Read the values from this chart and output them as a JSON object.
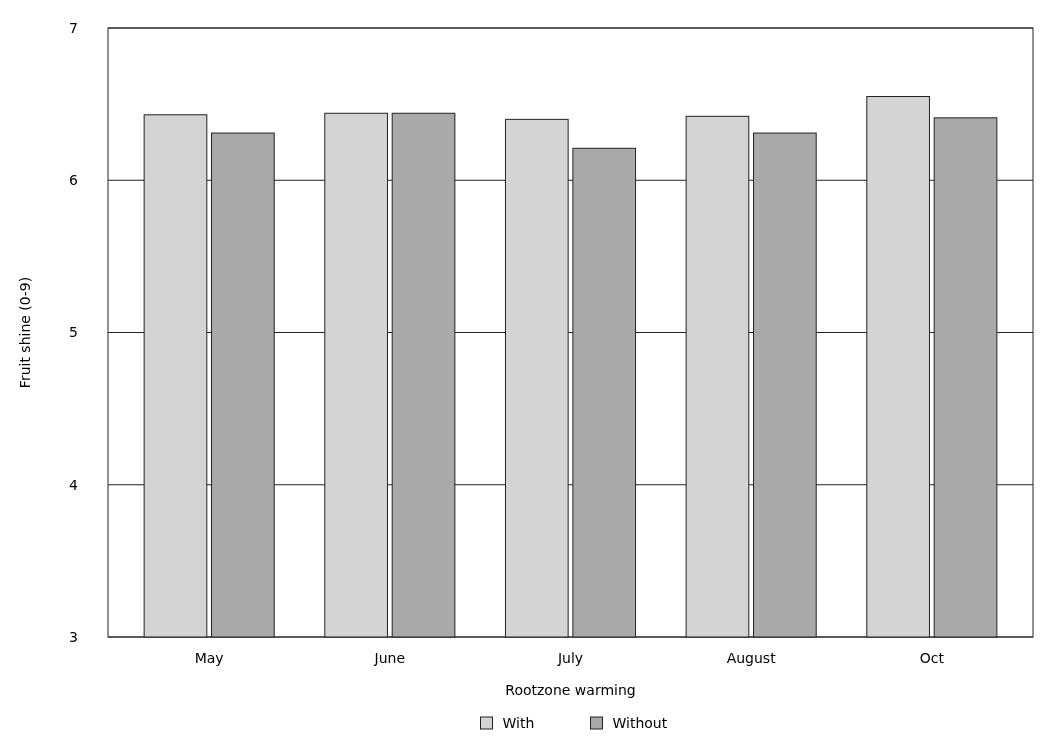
{
  "chart_data": {
    "type": "bar",
    "xlabel": "Rootzone warming",
    "ylabel": "Fruit shine (0-9)",
    "categories": [
      "May",
      "June",
      "July",
      "August",
      "Oct"
    ],
    "series": [
      {
        "name": "With",
        "color": "#d4d4d4",
        "values": [
          6.43,
          6.44,
          6.4,
          6.42,
          6.55
        ]
      },
      {
        "name": "Without",
        "color": "#a9a9a9",
        "values": [
          6.31,
          6.44,
          6.21,
          6.31,
          6.41
        ]
      }
    ],
    "ylim": [
      3,
      7
    ],
    "yticks": [
      3,
      4,
      5,
      6,
      7
    ],
    "grid": "y",
    "legend": "bottom"
  }
}
